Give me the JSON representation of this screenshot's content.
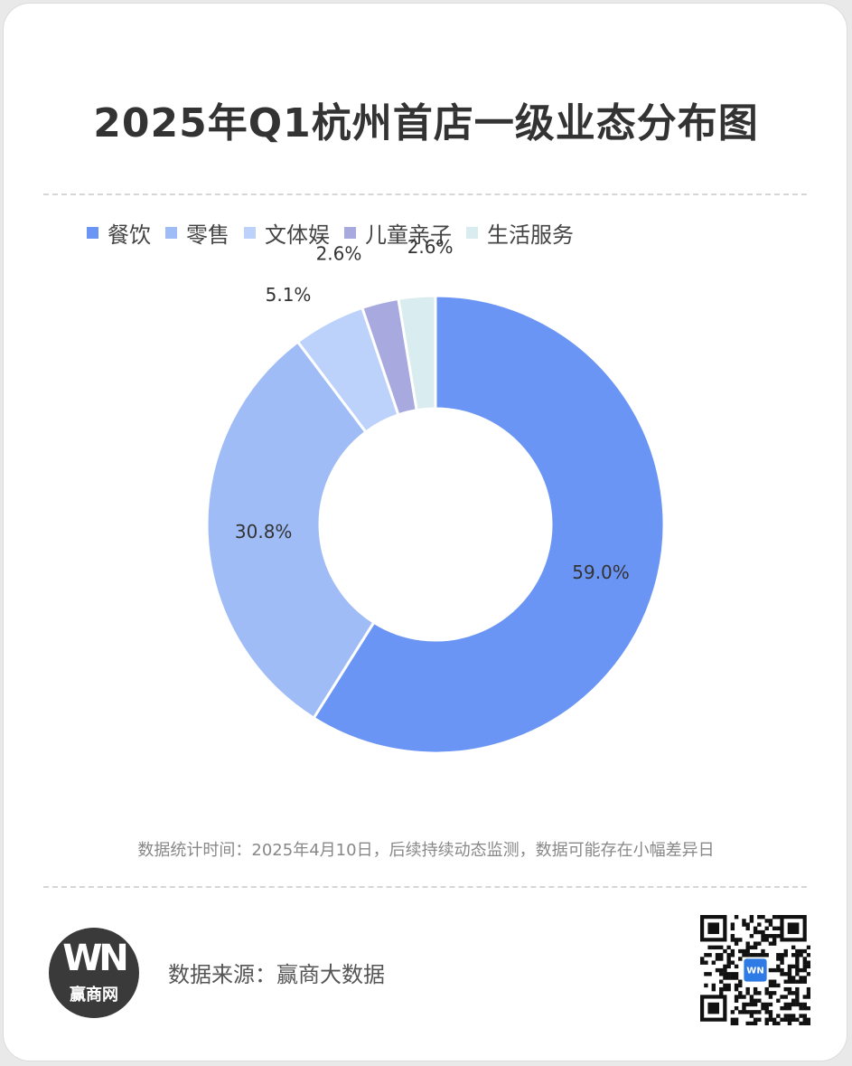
{
  "title": "2025年Q1杭州首店一级业态分布图",
  "chart_data": {
    "type": "pie",
    "donut": true,
    "title": "2025年Q1杭州首店一级业态分布图",
    "legend_position": "top-left",
    "categories": [
      "餐饮",
      "零售",
      "文体娱",
      "儿童亲子",
      "生活服务"
    ],
    "values": [
      59.0,
      30.8,
      5.1,
      2.6,
      2.6
    ],
    "labels": [
      "59.0%",
      "30.8%",
      "5.1%",
      "2.6%",
      "2.6%"
    ],
    "colors": [
      "#6b95f5",
      "#9fbcf7",
      "#bcd2fb",
      "#a8a9de",
      "#d9ecef"
    ]
  },
  "footnote": "数据统计时间：2025年4月10日，后续持续动态监测，数据可能存在小幅差异日",
  "source": "数据来源：赢商大数据",
  "logo": {
    "mark": "WN",
    "text": "赢商网"
  },
  "qr": {
    "icon": "qr-code-icon",
    "center_mark": "WN"
  }
}
